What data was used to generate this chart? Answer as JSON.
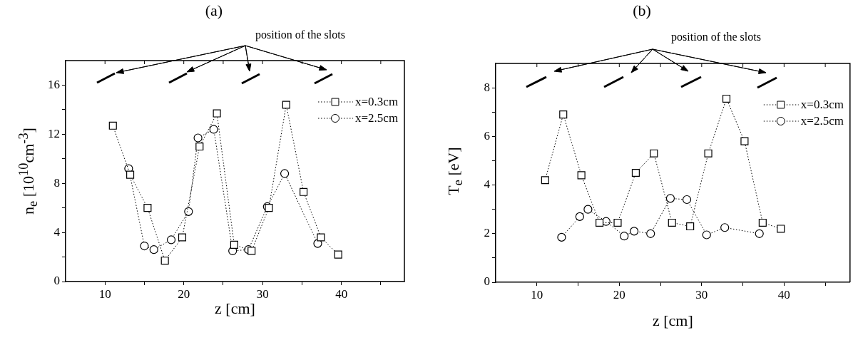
{
  "chart_data": [
    {
      "type": "line",
      "title": "(a)",
      "xlabel": "z [cm]",
      "ylabel": "n$_{e}$ [10$^{10}$cm$^{-3}$]",
      "annotations": [
        "position of the slots"
      ],
      "xlim": [
        5,
        48
      ],
      "xticks": [
        10,
        {
          "value": 15,
          "label": null
        },
        20,
        {
          "value": 25,
          "label": null
        },
        30,
        {
          "value": 35,
          "label": null
        },
        40,
        {
          "value": 45,
          "label": null
        }
      ],
      "ylim": [
        0,
        18
      ],
      "yticks": [
        0,
        {
          "value": 2,
          "label": null
        },
        4,
        {
          "value": 6,
          "label": null
        },
        8,
        {
          "value": 10,
          "label": null
        },
        12,
        {
          "value": 14,
          "label": null
        },
        16
      ],
      "grid": false,
      "legend": "top right",
      "line_style": "dotted",
      "series": [
        {
          "name": "x=0.3cm",
          "marker": "square",
          "color": "#000000",
          "x": [
            11,
            13.2,
            15.4,
            17.6,
            19.8,
            22,
            24.2,
            26.4,
            28.6,
            30.8,
            33,
            35.2,
            37.4,
            39.6
          ],
          "values": [
            12.7,
            8.7,
            6.0,
            1.7,
            3.6,
            11.0,
            13.7,
            3.0,
            2.5,
            6.0,
            14.4,
            7.3,
            3.6,
            2.2
          ]
        },
        {
          "name": "x=2.5cm",
          "marker": "circle",
          "color": "#000000",
          "x": [
            13,
            15,
            16.2,
            18.4,
            20.6,
            21.8,
            23.8,
            26.2,
            28.2,
            30.6,
            32.8,
            37
          ],
          "values": [
            9.2,
            2.9,
            2.6,
            3.4,
            5.7,
            11.7,
            12.4,
            2.5,
            2.6,
            6.1,
            8.8,
            3.1
          ]
        }
      ]
    },
    {
      "type": "line",
      "title": "(b)",
      "xlabel": "z [cm]",
      "ylabel": "T$_{e}$ [eV]",
      "annotations": [
        "position of the slots"
      ],
      "xlim": [
        5,
        48
      ],
      "xticks": [
        10,
        {
          "value": 15,
          "label": null
        },
        20,
        {
          "value": 25,
          "label": null
        },
        30,
        {
          "value": 35,
          "label": null
        },
        40,
        {
          "value": 45,
          "label": null
        }
      ],
      "ylim": [
        0,
        9
      ],
      "yticks": [
        0,
        {
          "value": 1,
          "label": null
        },
        2,
        {
          "value": 3,
          "label": null
        },
        4,
        {
          "value": 5,
          "label": null
        },
        6,
        {
          "value": 7,
          "label": null
        },
        8
      ],
      "grid": false,
      "legend": "top right",
      "line_style": "dotted",
      "series": [
        {
          "name": "x=0.3cm",
          "marker": "square",
          "color": "#000000",
          "x": [
            11,
            13.2,
            15.4,
            17.6,
            19.8,
            22,
            24.2,
            26.4,
            28.6,
            30.8,
            33,
            35.2,
            37.4,
            39.6
          ],
          "values": [
            4.2,
            6.9,
            4.4,
            2.45,
            2.45,
            4.5,
            5.3,
            2.45,
            2.3,
            5.3,
            7.55,
            5.8,
            2.45,
            2.2
          ]
        },
        {
          "name": "x=2.5cm",
          "marker": "circle",
          "color": "#000000",
          "x": [
            13,
            15.2,
            16.2,
            18.4,
            20.6,
            21.8,
            23.8,
            26.2,
            28.2,
            30.6,
            32.8,
            37
          ],
          "values": [
            1.85,
            2.7,
            3.0,
            2.5,
            1.9,
            2.1,
            2.0,
            3.45,
            3.4,
            1.95,
            2.25,
            2.0
          ]
        }
      ]
    }
  ]
}
